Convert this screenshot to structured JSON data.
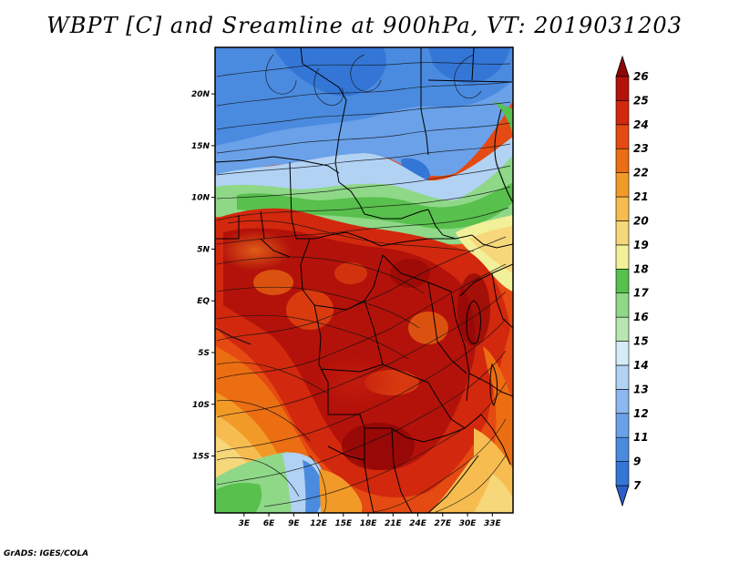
{
  "title": "WBPT [C] and Sreamline at 900hPa, VT: 2019031203",
  "credit": "GrADS: IGES/COLA",
  "map": {
    "variable": "Wet-bulb potential temperature",
    "units": "C",
    "level": "900hPa",
    "valid_time": "2019031203",
    "lon_range": [
      -0.5,
      35.5
    ],
    "lat_range": [
      -20.5,
      24.5
    ],
    "lon_ticks": [
      "3E",
      "6E",
      "9E",
      "12E",
      "15E",
      "18E",
      "21E",
      "24E",
      "27E",
      "30E",
      "33E"
    ],
    "lat_ticks": [
      "20N",
      "15N",
      "10N",
      "5N",
      "EQ",
      "5S",
      "10S",
      "15S"
    ]
  },
  "colorbar": {
    "levels": [
      "7",
      "9",
      "11",
      "12",
      "13",
      "14",
      "15",
      "16",
      "17",
      "18",
      "19",
      "20",
      "21",
      "22",
      "23",
      "24",
      "25",
      "26"
    ],
    "colors": [
      "#2a5fc8",
      "#3476d6",
      "#4a8be0",
      "#6aa1e8",
      "#8bb8ee",
      "#b2d2f4",
      "#d6ebf8",
      "#b9e6b0",
      "#8fd888",
      "#58c04c",
      "#f2f098",
      "#f6d77a",
      "#f6bc50",
      "#f29a28",
      "#ec6e12",
      "#e54a12",
      "#d2280e",
      "#b3120a",
      "#8e0606"
    ]
  }
}
